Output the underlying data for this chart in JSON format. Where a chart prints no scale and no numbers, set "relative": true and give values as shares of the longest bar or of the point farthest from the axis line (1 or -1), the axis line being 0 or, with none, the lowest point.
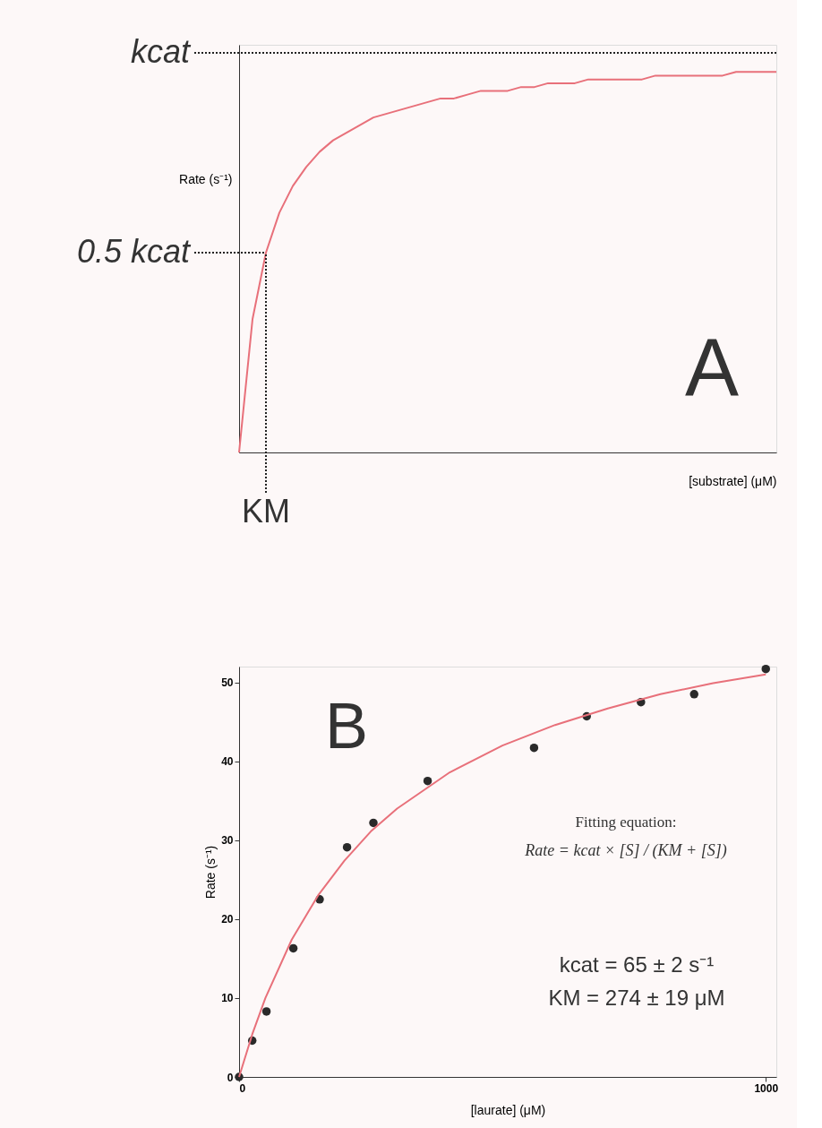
{
  "chart_data": [
    {
      "type": "line",
      "relative": true,
      "xlabel": "[substrate] (μM)",
      "ylabel": "Rate (s⁻¹)",
      "grid": false,
      "marker": "none",
      "categories": [
        null,
        null,
        null,
        null,
        null,
        null,
        null,
        null,
        null,
        null,
        null,
        null,
        null,
        null,
        null,
        null,
        null,
        null,
        null,
        null,
        null,
        null,
        null,
        null,
        null,
        null,
        null,
        null,
        null,
        null,
        null,
        null,
        null,
        null,
        null,
        null,
        null,
        null,
        null,
        null,
        null
      ],
      "series": [
        {
          "color": "#e8707a",
          "line_style": "solid",
          "values": [
            0,
            0.35,
            0.525,
            0.63,
            0.7,
            0.75,
            0.79,
            0.82,
            0.84,
            0.86,
            0.88,
            0.89,
            0.9,
            0.91,
            0.92,
            0.93,
            0.93,
            0.94,
            0.95,
            0.95,
            0.95,
            0.96,
            0.96,
            0.97,
            0.97,
            0.97,
            0.98,
            0.98,
            0.98,
            0.98,
            0.98,
            0.99,
            0.99,
            0.99,
            0.99,
            0.99,
            0.99,
            1.0,
            1.0,
            1.0,
            1.0
          ]
        }
      ],
      "ref_lines": [
        {
          "axis": "y",
          "value": 1.05,
          "label": "kcat",
          "line_style": "dotted",
          "color": "#222222"
        },
        {
          "axis": "y",
          "value": 0.525,
          "label": "0.5 kcat",
          "line_style": "dotted",
          "color": "#222222"
        }
      ],
      "annotations": [
        "A",
        "KM"
      ]
    },
    {
      "type": "scatter",
      "xlabel": "[laurate] (μM)",
      "ylabel": "Rate (s⁻¹)",
      "xlim": [
        0,
        1020
      ],
      "ylim": [
        0,
        52
      ],
      "xticks": [
        0,
        1000
      ],
      "yticks": [
        0,
        10,
        20,
        30,
        40,
        50
      ],
      "grid": false,
      "marker": "circle",
      "series": [
        {
          "type": "scatter",
          "color": "#2a2a2a",
          "x": [
            0,
            25,
            52,
            103,
            153,
            205,
            255,
            358,
            560,
            660,
            763,
            864,
            1000
          ],
          "values": [
            0,
            4.6,
            8.3,
            16.3,
            22.5,
            29.1,
            32.2,
            37.5,
            41.7,
            45.7,
            47.5,
            48.5,
            51.7
          ]
        },
        {
          "type": "line",
          "color": "#e8707a",
          "marker": "none",
          "line_style": "solid",
          "x": [
            0,
            25,
            50,
            100,
            150,
            200,
            250,
            300,
            400,
            500,
            600,
            700,
            800,
            900,
            1000
          ],
          "values": [
            0,
            5.4,
            10.0,
            17.4,
            23.0,
            27.4,
            31.1,
            34.0,
            38.6,
            42.0,
            44.6,
            46.7,
            48.5,
            49.9,
            51.0
          ]
        }
      ],
      "annotations": [
        "B",
        "Fitting equation:",
        "Rate = kcat × [S] / (KM + [S])",
        "kcat = 65 ± 2 s⁻¹",
        "KM = 274 ± 19 μM"
      ]
    }
  ]
}
